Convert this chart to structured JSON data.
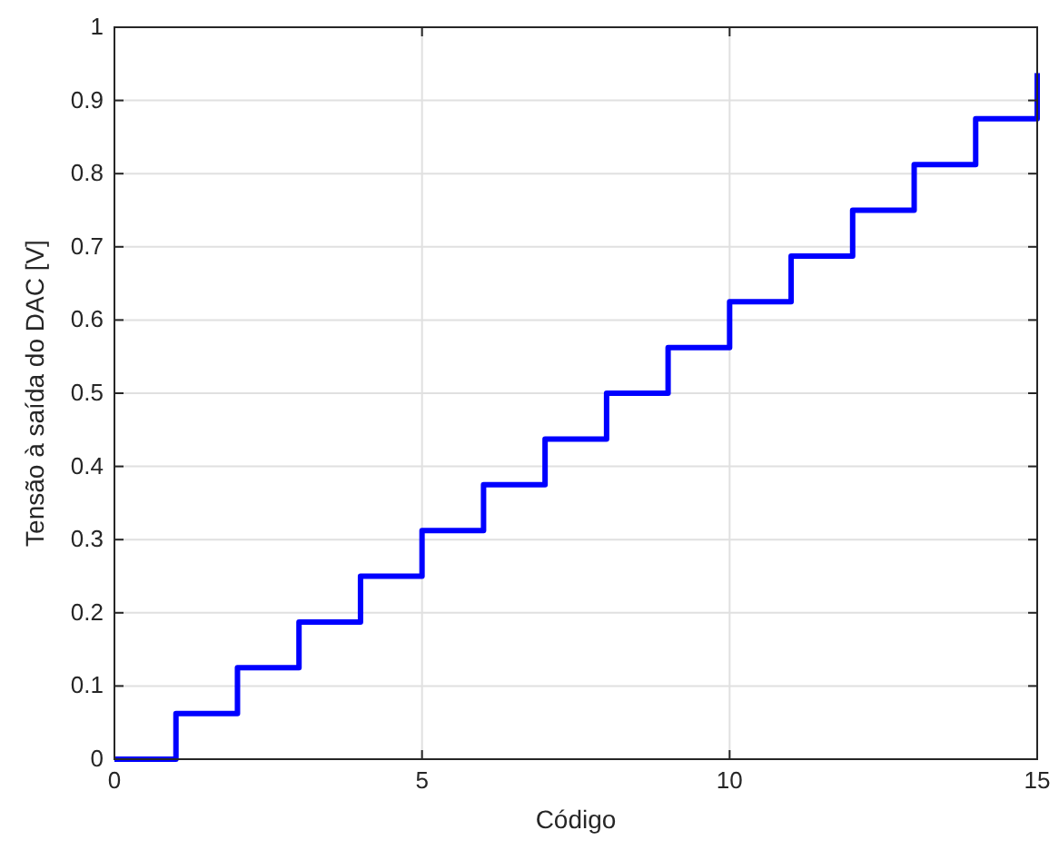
{
  "chart_data": {
    "type": "step",
    "xlabel": "Código",
    "ylabel": "Tensão à saída do DAC [V]",
    "x": [
      0,
      1,
      2,
      3,
      4,
      5,
      6,
      7,
      8,
      9,
      10,
      11,
      12,
      13,
      14,
      15
    ],
    "series": [
      {
        "color": "#0000ff",
        "values": [
          0,
          0.0625,
          0.125,
          0.1875,
          0.25,
          0.3125,
          0.375,
          0.4375,
          0.5,
          0.5625,
          0.625,
          0.6875,
          0.75,
          0.8125,
          0.875,
          0.9375
        ]
      }
    ],
    "xlim": [
      0,
      15
    ],
    "xticks": [
      0,
      5,
      10,
      15
    ],
    "ylim": [
      0,
      1
    ],
    "yticks": [
      0,
      {
        "value": 0.1,
        "label": "0.1"
      },
      {
        "value": 0.2,
        "label": "0.2"
      },
      {
        "value": 0.3,
        "label": "0.3"
      },
      {
        "value": 0.4,
        "label": "0.4"
      },
      {
        "value": 0.5,
        "label": "0.5"
      },
      {
        "value": 0.6,
        "label": "0.6"
      },
      {
        "value": 0.7,
        "label": "0.7"
      },
      {
        "value": 0.8,
        "label": "0.8"
      },
      {
        "value": 0.9,
        "label": "0.9"
      },
      1
    ],
    "grid": true,
    "line_style": "solid"
  }
}
